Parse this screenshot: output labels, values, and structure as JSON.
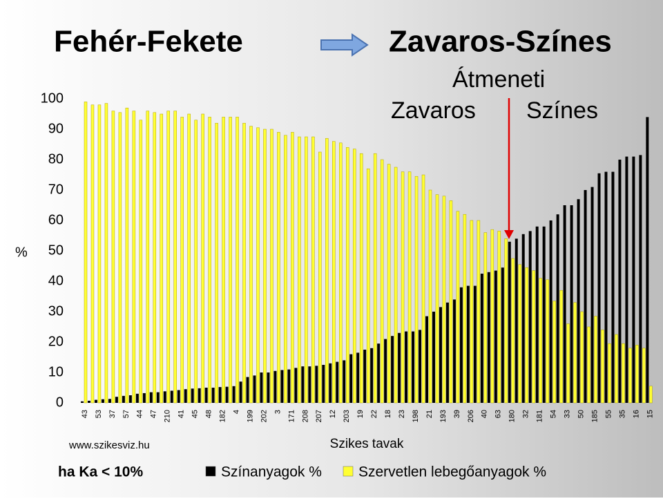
{
  "chart_data": {
    "type": "bar",
    "title": "Fehér-Fekete",
    "title2": "Zavaros-Színes",
    "annotations": [
      "Átmeneti",
      "Zavaros",
      "Színes"
    ],
    "y_label": "%",
    "x_label": "Szikes tavak",
    "source": "www.szikesviz.hu",
    "note": "ha Ka < 10%",
    "categories": [
      "43",
      null,
      "53",
      null,
      "37",
      null,
      "57",
      null,
      "44",
      null,
      "47",
      null,
      "210",
      null,
      "41",
      null,
      "45",
      null,
      "48",
      null,
      "182",
      null,
      "4",
      null,
      "199",
      null,
      "202",
      null,
      "3",
      null,
      "171",
      null,
      "208",
      null,
      "207",
      null,
      "12",
      null,
      "203",
      null,
      "19",
      null,
      "22",
      null,
      "18",
      null,
      "23",
      null,
      "198",
      null,
      "21",
      null,
      "193",
      null,
      "39",
      null,
      "206",
      null,
      "40",
      null,
      "63",
      null,
      "180",
      null,
      "32",
      null,
      "181",
      null,
      "54",
      null,
      "33",
      null,
      "50",
      null,
      "185",
      null,
      "55",
      null,
      "35",
      null,
      "16",
      null,
      "15"
    ],
    "series": [
      {
        "name": "Színanyagok %",
        "color": "#000000",
        "values": [
          0.5,
          0.7,
          1,
          1.2,
          1.3,
          2,
          2.3,
          2.5,
          3,
          3.2,
          3.5,
          3.5,
          3.8,
          4,
          4.2,
          4.5,
          4.7,
          4.8,
          5,
          5,
          5.2,
          5.3,
          5.5,
          7,
          8.5,
          9,
          10,
          10,
          10.5,
          10.8,
          11,
          11.5,
          12,
          12,
          12.2,
          12.5,
          13,
          13.5,
          14,
          16,
          16.5,
          17.5,
          18,
          19.5,
          21,
          22,
          23,
          23.5,
          23.5,
          24,
          28.5,
          30,
          31.5,
          33,
          34,
          38,
          38.5,
          38.5,
          42.5,
          43,
          43.5,
          44.5,
          53,
          54,
          55.5,
          56.5,
          58,
          58,
          60,
          62,
          65,
          65,
          67,
          70,
          71,
          75.5,
          76,
          76,
          80,
          81,
          81,
          81.5,
          94
        ]
      },
      {
        "name": "Szervetlen lebegőanyagok %",
        "color": "#ffff33",
        "values": [
          99,
          98,
          98,
          98.5,
          96,
          95.5,
          97,
          96,
          93,
          96,
          95.5,
          95,
          96,
          96,
          94,
          95,
          93,
          95,
          94,
          92,
          94,
          94,
          94,
          92,
          91,
          90.5,
          90,
          90,
          89,
          88,
          89,
          87.5,
          87.5,
          87.5,
          82.5,
          87,
          86,
          85.5,
          84,
          83.5,
          82,
          77,
          82,
          80,
          78.5,
          77.5,
          76,
          76,
          74.5,
          75,
          70,
          68.5,
          68,
          66.5,
          63,
          62,
          60,
          60,
          56,
          57,
          56.5,
          54,
          47.5,
          45.5,
          44.5,
          43.5,
          41,
          40.5,
          33.5,
          37,
          26,
          33,
          30,
          25,
          28.5,
          24,
          19.5,
          22.5,
          19.5,
          18,
          19,
          18,
          5.5
        ]
      }
    ],
    "ylim": [
      0,
      100
    ],
    "yticks": [
      0,
      10,
      20,
      30,
      40,
      50,
      60,
      70,
      80,
      90,
      100
    ],
    "grid": false
  }
}
